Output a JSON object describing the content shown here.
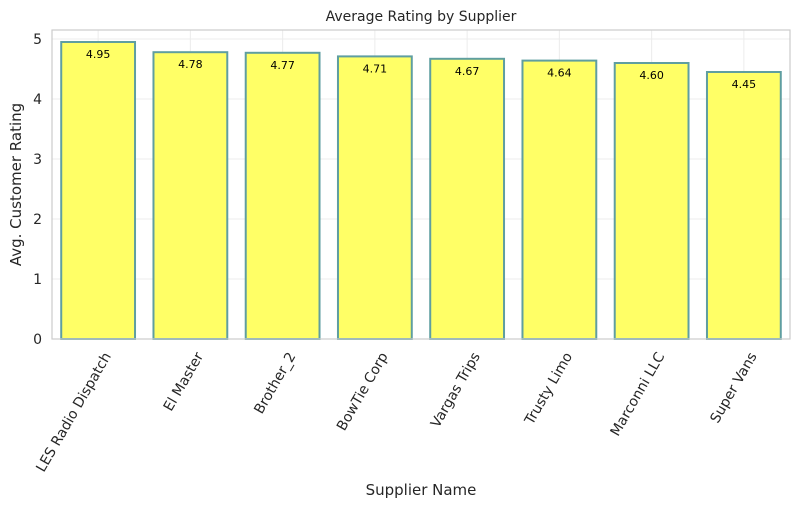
{
  "chart_data": {
    "type": "bar",
    "title": "Average Rating by Supplier",
    "xlabel": "Supplier Name",
    "ylabel": "Avg. Customer Rating",
    "categories": [
      "LES Radio Dispatch",
      "El Master",
      "Brother_2",
      "BowTie Corp",
      "Vargas Trips",
      "Trusty Limo",
      "Marconni LLC",
      "Super Vans"
    ],
    "values": [
      4.95,
      4.78,
      4.77,
      4.71,
      4.67,
      4.64,
      4.6,
      4.45
    ],
    "data_labels": [
      "4.95",
      "4.78",
      "4.77",
      "4.71",
      "4.67",
      "4.64",
      "4.60",
      "4.45"
    ],
    "ylim": [
      0,
      5.15
    ],
    "yticks": [
      0,
      1,
      2,
      3,
      4,
      5
    ],
    "grid": true,
    "legend": "none",
    "colors": {
      "bar_fill": "#ffff66",
      "bar_edge": "#5f9ea0"
    }
  }
}
